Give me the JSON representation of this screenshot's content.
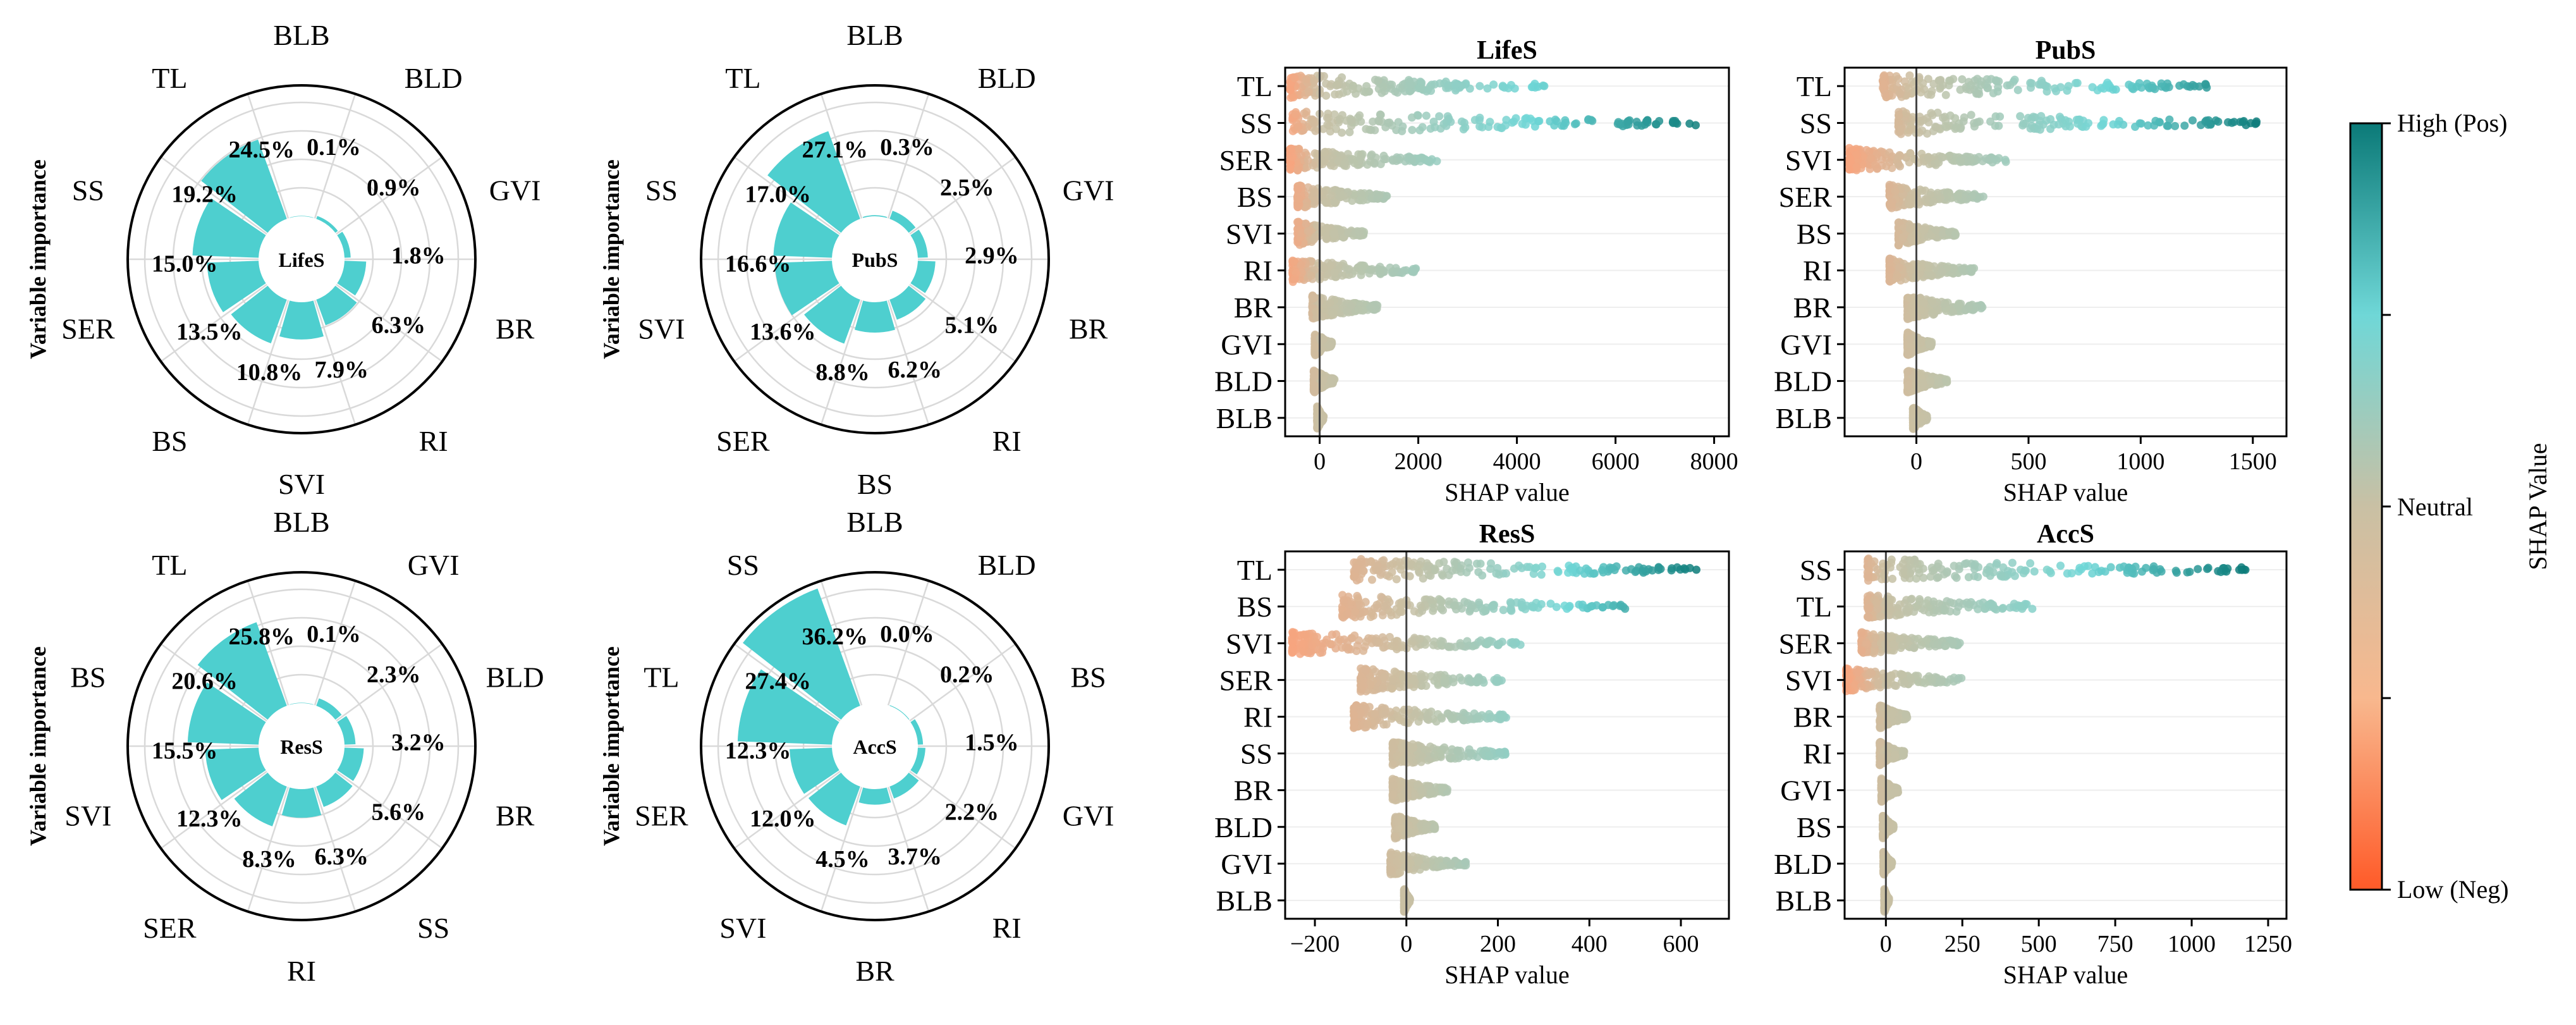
{
  "colors": {
    "bar_fill": "#4ECFCF",
    "grid": "#d9d9d9",
    "shap_low": "#ff5c2e",
    "shap_neutral": "#c9c0a4",
    "shap_mid": "#6fd7d7",
    "shap_high": "#0b7a78"
  },
  "colorbar": {
    "high_label": "High (Pos)",
    "neutral_label": "Neutral",
    "low_label": "Low (Neg)",
    "title": "SHAP Value"
  },
  "chart_data": [
    {
      "type": "polar_bar",
      "center_label": "LifeS",
      "ylabel": "Variable importance",
      "categories": [
        "BLB",
        "BLD",
        "GVI",
        "BR",
        "RI",
        "SVI",
        "BS",
        "SER",
        "SS",
        "TL"
      ],
      "values": [
        0.1,
        0.9,
        1.8,
        6.3,
        7.9,
        10.8,
        13.5,
        15.0,
        19.2,
        24.5
      ],
      "value_labels": [
        "0.1%",
        "0.9%",
        "1.8%",
        "6.3%",
        "7.9%",
        "10.8%",
        "13.5%",
        "15.0%",
        "19.2%",
        "24.5%"
      ]
    },
    {
      "type": "polar_bar",
      "center_label": "PubS",
      "ylabel": "Variable importance",
      "categories": [
        "BLB",
        "BLD",
        "GVI",
        "BR",
        "RI",
        "BS",
        "SER",
        "SVI",
        "SS",
        "TL"
      ],
      "values": [
        0.3,
        2.5,
        2.9,
        5.1,
        6.2,
        8.8,
        13.6,
        16.6,
        17.0,
        27.1
      ],
      "value_labels": [
        "0.3%",
        "2.5%",
        "2.9%",
        "5.1%",
        "6.2%",
        "8.8%",
        "13.6%",
        "16.6%",
        "17.0%",
        "27.1%"
      ]
    },
    {
      "type": "polar_bar",
      "center_label": "ResS",
      "ylabel": "Variable importance",
      "categories": [
        "BLB",
        "GVI",
        "BLD",
        "BR",
        "SS",
        "RI",
        "SER",
        "SVI",
        "BS",
        "TL"
      ],
      "values": [
        0.1,
        2.3,
        3.2,
        5.6,
        6.3,
        8.3,
        12.3,
        15.5,
        20.6,
        25.8
      ],
      "value_labels": [
        "0.1%",
        "2.3%",
        "3.2%",
        "5.6%",
        "6.3%",
        "8.3%",
        "12.3%",
        "15.5%",
        "20.6%",
        "25.8%"
      ]
    },
    {
      "type": "polar_bar",
      "center_label": "AccS",
      "ylabel": "Variable importance",
      "categories": [
        "BLB",
        "BLD",
        "BS",
        "GVI",
        "RI",
        "BR",
        "SVI",
        "SER",
        "TL",
        "SS"
      ],
      "values": [
        0.0,
        0.2,
        1.5,
        2.2,
        3.7,
        4.5,
        12.0,
        12.3,
        27.4,
        36.2
      ],
      "value_labels": [
        "0.0%",
        "0.2%",
        "1.5%",
        "2.2%",
        "3.7%",
        "4.5%",
        "12.0%",
        "12.3%",
        "27.4%",
        "36.2%"
      ]
    },
    {
      "type": "beeswarm",
      "title": "LifeS",
      "xlabel": "SHAP value",
      "features": [
        "TL",
        "SS",
        "SER",
        "BS",
        "SVI",
        "RI",
        "BR",
        "GVI",
        "BLD",
        "BLB"
      ],
      "xlim": [
        -700,
        8300
      ],
      "xticks": [
        0,
        2000,
        4000,
        6000,
        8000
      ],
      "ranges": [
        [
          -600,
          4600
        ],
        [
          -550,
          7800
        ],
        [
          -600,
          2400
        ],
        [
          -450,
          1400
        ],
        [
          -450,
          900
        ],
        [
          -550,
          2000
        ],
        [
          -150,
          1200
        ],
        [
          -100,
          250
        ],
        [
          -120,
          300
        ],
        [
          -50,
          80
        ]
      ]
    },
    {
      "type": "beeswarm",
      "title": "PubS",
      "xlabel": "SHAP value",
      "features": [
        "TL",
        "SS",
        "SVI",
        "SER",
        "BS",
        "RI",
        "BR",
        "GVI",
        "BLD",
        "BLB"
      ],
      "xlim": [
        -320,
        1650
      ],
      "xticks": [
        0,
        500,
        1000,
        1500
      ],
      "ranges": [
        [
          -150,
          1300
        ],
        [
          -80,
          1540
        ],
        [
          -300,
          400
        ],
        [
          -120,
          300
        ],
        [
          -80,
          180
        ],
        [
          -120,
          260
        ],
        [
          -40,
          300
        ],
        [
          -40,
          70
        ],
        [
          -40,
          140
        ],
        [
          -15,
          50
        ]
      ]
    },
    {
      "type": "beeswarm",
      "title": "ResS",
      "xlabel": "SHAP value",
      "features": [
        "TL",
        "BS",
        "SVI",
        "SER",
        "RI",
        "SS",
        "BR",
        "BLD",
        "GVI",
        "BLB"
      ],
      "xlim": [
        -265,
        705
      ],
      "xticks": [
        -200,
        0,
        200,
        400,
        600
      ],
      "ranges": [
        [
          -115,
          640
        ],
        [
          -140,
          480
        ],
        [
          -250,
          250
        ],
        [
          -100,
          210
        ],
        [
          -115,
          220
        ],
        [
          -30,
          220
        ],
        [
          -30,
          90
        ],
        [
          -25,
          65
        ],
        [
          -35,
          130
        ],
        [
          -5,
          8
        ]
      ]
    },
    {
      "type": "beeswarm",
      "title": "AccS",
      "xlabel": "SHAP value",
      "features": [
        "SS",
        "TL",
        "SER",
        "SVI",
        "BR",
        "RI",
        "GVI",
        "BS",
        "BLD",
        "BLB"
      ],
      "xlim": [
        -135,
        1310
      ],
      "xticks": [
        0,
        250,
        500,
        750,
        1000,
        1250
      ],
      "ranges": [
        [
          -60,
          1180
        ],
        [
          -60,
          480
        ],
        [
          -80,
          250
        ],
        [
          -130,
          250
        ],
        [
          -20,
          70
        ],
        [
          -20,
          60
        ],
        [
          -15,
          40
        ],
        [
          -10,
          25
        ],
        [
          -8,
          20
        ],
        [
          -5,
          10
        ]
      ]
    }
  ]
}
